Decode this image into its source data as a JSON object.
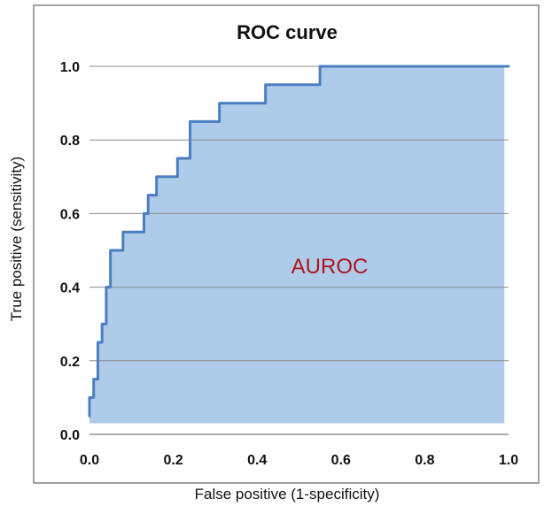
{
  "chart_data": {
    "type": "line",
    "title": "ROC curve",
    "xlabel": "False positive (1-specificity)",
    "ylabel": "True positive (sensitivity)",
    "xlim": [
      0,
      1
    ],
    "ylim": [
      0,
      1
    ],
    "x_ticks": [
      "0.0",
      "0.2",
      "0.4",
      "0.6",
      "0.8",
      "1.0"
    ],
    "y_ticks": [
      "0.0",
      "0.2",
      "0.4",
      "0.6",
      "0.8",
      "1.0"
    ],
    "grid": "horizontal",
    "fill_under_curve": true,
    "annotation": "AUROC",
    "colors": {
      "line": "#4a7fc1",
      "fill": "#aecbe9",
      "annotation": "#b0141c",
      "grid": "#8c8c8c"
    },
    "series": [
      {
        "x": [
          0.0,
          0.0,
          0.01,
          0.01,
          0.02,
          0.02,
          0.03,
          0.03,
          0.04,
          0.04,
          0.05,
          0.05,
          0.08,
          0.08,
          0.13,
          0.13,
          0.14,
          0.14,
          0.16,
          0.16,
          0.21,
          0.21,
          0.24,
          0.24,
          0.31,
          0.31,
          0.42,
          0.42,
          0.55,
          0.55,
          0.65,
          0.65,
          1.0
        ],
        "y": [
          0.05,
          0.1,
          0.1,
          0.15,
          0.15,
          0.25,
          0.25,
          0.3,
          0.3,
          0.4,
          0.4,
          0.5,
          0.5,
          0.55,
          0.55,
          0.6,
          0.6,
          0.65,
          0.65,
          0.7,
          0.7,
          0.75,
          0.75,
          0.85,
          0.85,
          0.9,
          0.9,
          0.95,
          0.95,
          1.0,
          1.0,
          1.0,
          1.0
        ]
      }
    ]
  }
}
